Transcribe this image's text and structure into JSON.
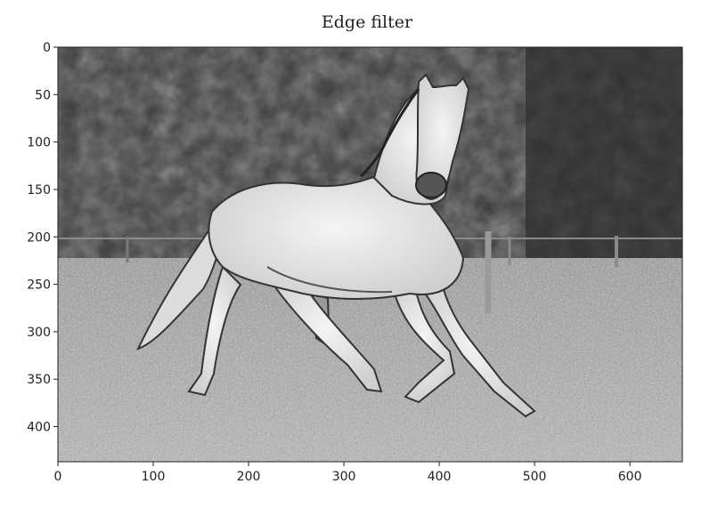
{
  "chart_data": {
    "type": "image",
    "title": "Edge filter",
    "xlabel": "",
    "ylabel": "",
    "xlim": [
      0,
      655
    ],
    "ylim": [
      437,
      0
    ],
    "x_ticks": [
      0,
      100,
      200,
      300,
      400,
      500,
      600
    ],
    "y_ticks": [
      0,
      50,
      100,
      150,
      200,
      250,
      300,
      350,
      400
    ],
    "grid": false,
    "colormap": "grayscale"
  }
}
